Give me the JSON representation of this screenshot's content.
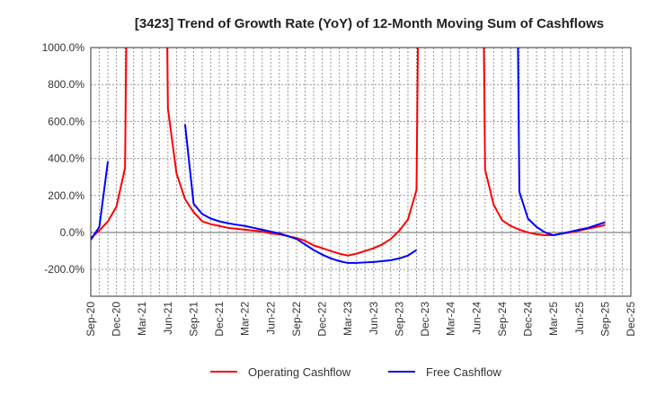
{
  "chart_data": {
    "type": "line",
    "title": "[3423]  Trend of Growth Rate (YoY) of 12-Month Moving Sum of Cashflows",
    "xlabel": "",
    "ylabel": "",
    "ylim": [
      -345,
      1000
    ],
    "yticks": [
      1000,
      800,
      600,
      400,
      200,
      0,
      -200
    ],
    "ytick_labels": [
      "1000.0%",
      "800.0%",
      "600.0%",
      "400.0%",
      "200.0%",
      "0.0%",
      "-200.0%"
    ],
    "x_start": "Sep-20",
    "x_months_count": 64,
    "xtick_labels": [
      "Sep-20",
      "Dec-20",
      "Mar-21",
      "Jun-21",
      "Sep-21",
      "Dec-21",
      "Mar-22",
      "Jun-22",
      "Sep-22",
      "Dec-22",
      "Mar-23",
      "Jun-23",
      "Sep-23",
      "Dec-23",
      "Mar-24",
      "Jun-24",
      "Sep-24",
      "Dec-24",
      "Mar-25",
      "Jun-25",
      "Sep-25",
      "Dec-25"
    ],
    "grid": true,
    "legend_position": "bottom-center",
    "series": [
      {
        "name": "Operating Cashflow",
        "color": "#ff0000",
        "values": [
          -30,
          10,
          60,
          140,
          350,
          5000,
          5000,
          5000,
          5000,
          670,
          320,
          180,
          110,
          60,
          45,
          35,
          25,
          20,
          15,
          10,
          5,
          -5,
          -10,
          -20,
          -30,
          -45,
          -70,
          -85,
          -100,
          -115,
          -125,
          -115,
          -100,
          -85,
          -65,
          -35,
          10,
          70,
          230,
          5000,
          5000,
          5000,
          5000,
          5000,
          5000,
          5000,
          340,
          150,
          65,
          35,
          15,
          0,
          -10,
          -15,
          -15,
          -5,
          0,
          10,
          20,
          30,
          40
        ]
      },
      {
        "name": "Free Cashflow",
        "color": "#0000ff",
        "values": [
          -40,
          30,
          385,
          null,
          null,
          null,
          null,
          null,
          null,
          null,
          null,
          585,
          155,
          100,
          75,
          60,
          50,
          42,
          35,
          25,
          15,
          5,
          -5,
          -20,
          -35,
          -65,
          -95,
          -120,
          -140,
          -155,
          -165,
          -165,
          -162,
          -160,
          -155,
          -150,
          -140,
          -125,
          -95,
          null,
          null,
          null,
          null,
          null,
          null,
          null,
          null,
          null,
          null,
          5000,
          220,
          75,
          30,
          0,
          -15,
          -5,
          5,
          15,
          25,
          40,
          55
        ]
      }
    ]
  }
}
